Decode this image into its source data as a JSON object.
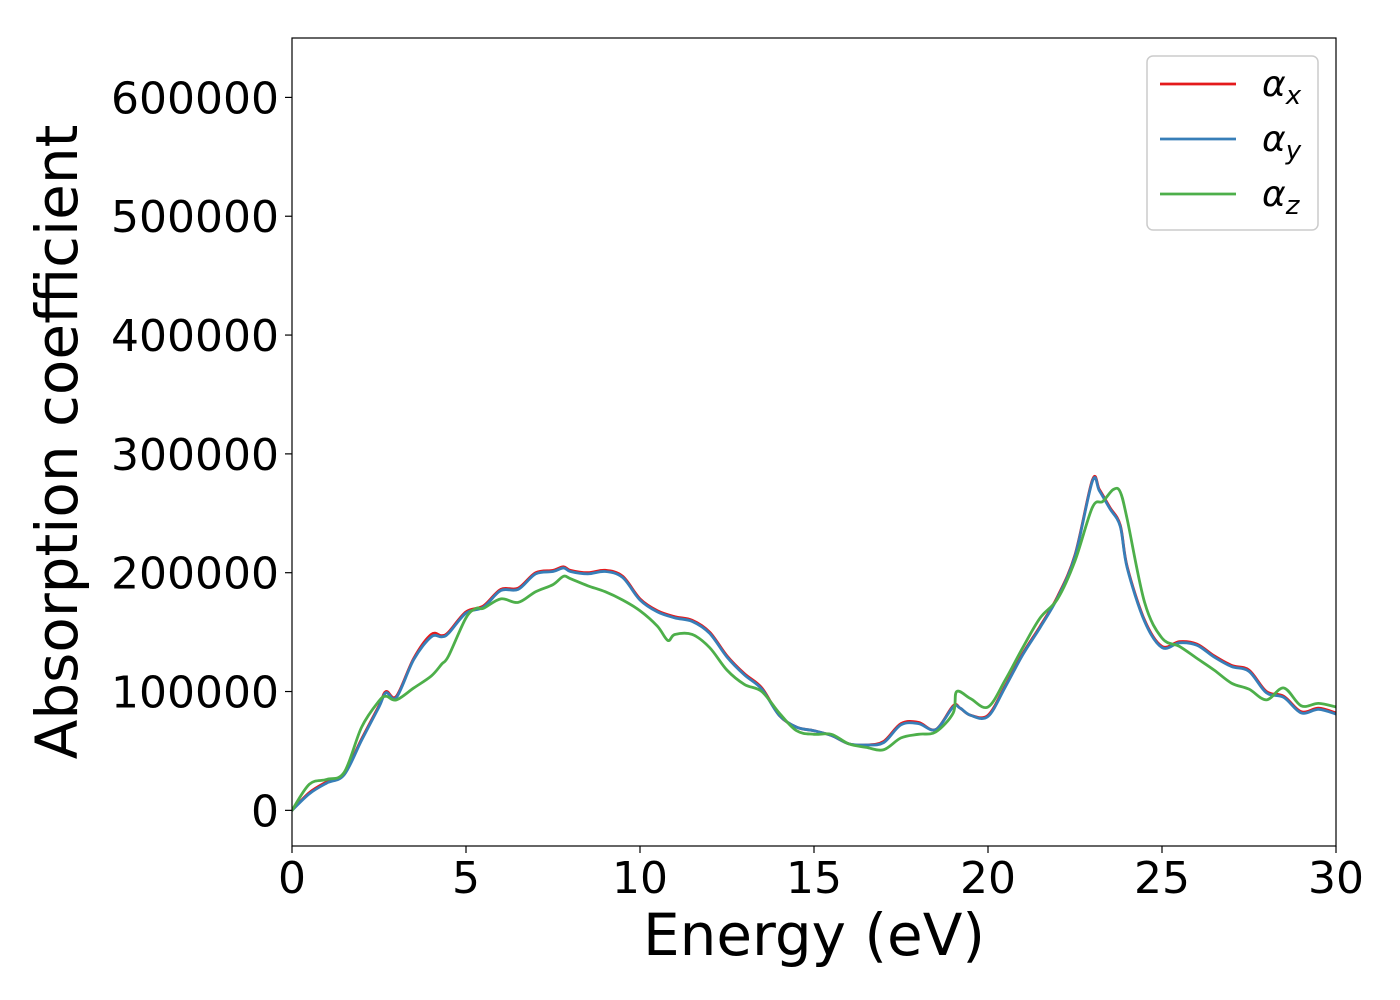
{
  "chart_data": {
    "type": "line",
    "title": "",
    "xlabel": "Energy (eV)",
    "ylabel": "Absorption coefficient",
    "xlim": [
      0,
      30
    ],
    "ylim": [
      -30000,
      650000
    ],
    "xticks": [
      0,
      5,
      10,
      15,
      20,
      25,
      30
    ],
    "yticks": [
      0,
      100000,
      200000,
      300000,
      400000,
      500000,
      600000
    ],
    "xtick_labels": [
      "0",
      "5",
      "10",
      "15",
      "20",
      "25",
      "30"
    ],
    "ytick_labels": [
      "0",
      "100000",
      "200000",
      "300000",
      "400000",
      "500000",
      "600000"
    ],
    "grid": false,
    "legend_position": "top-right",
    "series": [
      {
        "name": "αx",
        "base": "α",
        "sub": "x",
        "color": "#e41a1c",
        "x": [
          0,
          0.5,
          1,
          1.5,
          2,
          2.5,
          2.7,
          3,
          3.5,
          4,
          4.3,
          4.5,
          5,
          5.5,
          6,
          6.5,
          7,
          7.5,
          7.8,
          8,
          8.5,
          9,
          9.5,
          10,
          10.5,
          11,
          11.5,
          12,
          12.5,
          13,
          13.5,
          14,
          14.5,
          15,
          15.5,
          16,
          16.5,
          17,
          17.5,
          18,
          18.5,
          19,
          19.2,
          19.5,
          20,
          20.5,
          21,
          21.5,
          22,
          22.5,
          23,
          23.2,
          23.5,
          23.8,
          24,
          24.5,
          25,
          25.5,
          26,
          26.5,
          27,
          27.5,
          28,
          28.5,
          29,
          29.5,
          30
        ],
        "y": [
          0,
          15000,
          24000,
          31000,
          60000,
          88000,
          100000,
          96000,
          128000,
          148000,
          147000,
          150000,
          167000,
          172000,
          186000,
          187000,
          200000,
          202000,
          205000,
          202000,
          200000,
          202000,
          197000,
          178000,
          168000,
          163000,
          160000,
          150000,
          130000,
          115000,
          103000,
          80000,
          70000,
          67000,
          63000,
          56000,
          55000,
          58000,
          73000,
          74000,
          68000,
          88000,
          86000,
          80000,
          80000,
          105000,
          132000,
          155000,
          180000,
          215000,
          278000,
          270000,
          255000,
          240000,
          205000,
          160000,
          138000,
          142000,
          140000,
          130000,
          122000,
          118000,
          100000,
          96000,
          83000,
          86000,
          82000
        ]
      },
      {
        "name": "αy",
        "base": "α",
        "sub": "y",
        "color": "#377eb8",
        "x": [
          0,
          0.5,
          1,
          1.5,
          2,
          2.5,
          2.7,
          3,
          3.5,
          4,
          4.3,
          4.5,
          5,
          5.5,
          6,
          6.5,
          7,
          7.5,
          7.8,
          8,
          8.5,
          9,
          9.5,
          10,
          10.5,
          11,
          11.5,
          12,
          12.5,
          13,
          13.5,
          14,
          14.5,
          15,
          15.5,
          16,
          16.5,
          17,
          17.5,
          18,
          18.5,
          19,
          19.2,
          19.5,
          20,
          20.5,
          21,
          21.5,
          22,
          22.5,
          23,
          23.2,
          23.5,
          23.8,
          24,
          24.5,
          25,
          25.5,
          26,
          26.5,
          27,
          27.5,
          28,
          28.5,
          29,
          29.5,
          30
        ],
        "y": [
          0,
          14000,
          23000,
          30000,
          59000,
          87000,
          99000,
          95000,
          127000,
          146000,
          146000,
          149000,
          166000,
          171000,
          185000,
          186000,
          199000,
          201000,
          204000,
          201000,
          199000,
          201000,
          196000,
          177000,
          167000,
          162000,
          159000,
          149000,
          129000,
          114000,
          102000,
          80000,
          70000,
          67000,
          63000,
          56000,
          55000,
          57000,
          72000,
          73000,
          68000,
          87000,
          86000,
          80000,
          79000,
          104000,
          131000,
          154000,
          179000,
          214000,
          277000,
          269000,
          254000,
          239000,
          204000,
          159000,
          137000,
          141000,
          139000,
          129000,
          121000,
          117000,
          99000,
          95000,
          82000,
          85000,
          81000
        ]
      },
      {
        "name": "αz",
        "base": "α",
        "sub": "z",
        "color": "#4daf4a",
        "x": [
          0,
          0.5,
          1,
          1.5,
          2,
          2.5,
          2.7,
          3,
          3.5,
          4,
          4.3,
          4.5,
          5,
          5.3,
          5.5,
          6,
          6.5,
          7,
          7.5,
          7.8,
          8,
          8.5,
          9,
          9.5,
          10,
          10.5,
          10.8,
          11,
          11.5,
          12,
          12.5,
          13,
          13.5,
          14,
          14.5,
          15,
          15.5,
          16,
          16.5,
          17,
          17.5,
          18,
          18.5,
          19,
          19.1,
          19.5,
          20,
          20.5,
          21,
          21.5,
          22,
          22.5,
          23,
          23.3,
          23.6,
          23.8,
          24,
          24.5,
          25,
          25.5,
          26,
          26.5,
          27,
          27.5,
          28,
          28.5,
          29,
          29.5,
          30
        ],
        "y": [
          0,
          22000,
          26000,
          32000,
          70000,
          92000,
          96000,
          93000,
          103000,
          113000,
          123000,
          130000,
          162000,
          170000,
          170000,
          178000,
          175000,
          184000,
          190000,
          197000,
          195000,
          189000,
          184000,
          177000,
          168000,
          155000,
          143000,
          148000,
          148000,
          137000,
          118000,
          106000,
          100000,
          82000,
          67000,
          64000,
          64000,
          56000,
          53000,
          51000,
          61000,
          64000,
          66000,
          82000,
          100000,
          94000,
          87000,
          110000,
          137000,
          162000,
          178000,
          210000,
          255000,
          260000,
          270000,
          268000,
          245000,
          175000,
          145000,
          138000,
          128000,
          118000,
          107000,
          102000,
          93000,
          103000,
          88000,
          90000,
          87000
        ]
      }
    ]
  }
}
